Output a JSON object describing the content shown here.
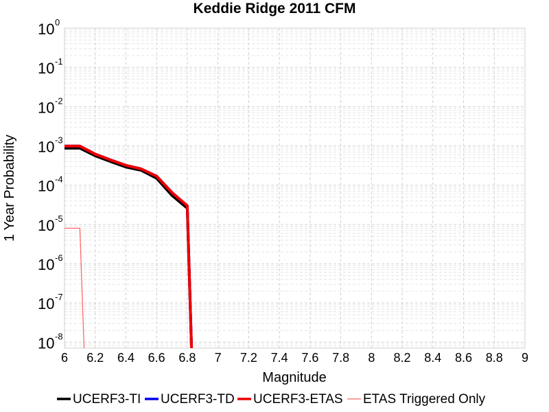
{
  "chart_data": {
    "type": "line",
    "title": "Keddie Ridge 2011 CFM",
    "xlabel": "Magnitude",
    "ylabel": "1 Year Probability",
    "xlim": [
      6,
      9
    ],
    "ylim_exponents": [
      -8.15,
      0
    ],
    "y_scale": "log",
    "grid": true,
    "legend_position": "bottom",
    "x_ticks": [
      "6",
      "6.2",
      "6.4",
      "6.6",
      "6.8",
      "7",
      "7.2",
      "7.4",
      "7.6",
      "7.8",
      "8",
      "8.2",
      "8.4",
      "8.6",
      "8.8",
      "9"
    ],
    "y_ticks": [
      {
        "base": "10",
        "exp": "0"
      },
      {
        "base": "10",
        "exp": "-1"
      },
      {
        "base": "10",
        "exp": "-2"
      },
      {
        "base": "10",
        "exp": "-3"
      },
      {
        "base": "10",
        "exp": "-4"
      },
      {
        "base": "10",
        "exp": "-5"
      },
      {
        "base": "10",
        "exp": "-6"
      },
      {
        "base": "10",
        "exp": "-7"
      },
      {
        "base": "10",
        "exp": "-8"
      }
    ],
    "series": [
      {
        "name": "UCERF3-TI",
        "color": "#000000",
        "width": 4,
        "x": [
          6.0,
          6.1,
          6.2,
          6.3,
          6.4,
          6.5,
          6.6,
          6.7,
          6.8,
          6.83
        ],
        "y": [
          0.00088,
          0.00088,
          0.00056,
          0.0004,
          0.00029,
          0.00024,
          0.00015,
          5.5e-05,
          2.6e-05,
          1e-09
        ]
      },
      {
        "name": "UCERF3-TD",
        "color": "#0000ee",
        "width": 4,
        "x": [
          6.0,
          6.1,
          6.2,
          6.3,
          6.4,
          6.5,
          6.6,
          6.7,
          6.8,
          6.83
        ],
        "y": [
          0.00099,
          0.00099,
          0.00062,
          0.00044,
          0.00032,
          0.00026,
          0.00017,
          6.5e-05,
          3e-05,
          1e-09
        ]
      },
      {
        "name": "UCERF3-ETAS",
        "color": "#ee0000",
        "width": 4,
        "x": [
          6.0,
          6.1,
          6.2,
          6.3,
          6.4,
          6.5,
          6.6,
          6.7,
          6.8,
          6.83
        ],
        "y": [
          0.00099,
          0.00099,
          0.00062,
          0.00044,
          0.00032,
          0.00026,
          0.00017,
          6.5e-05,
          3e-05,
          1e-09
        ]
      },
      {
        "name": "ETAS Triggered Only",
        "color": "#ff6666",
        "width": 1.3,
        "x": [
          6.0,
          6.1,
          6.1,
          6.13
        ],
        "y": [
          8e-06,
          8e-06,
          8e-06,
          1e-09
        ]
      }
    ]
  }
}
